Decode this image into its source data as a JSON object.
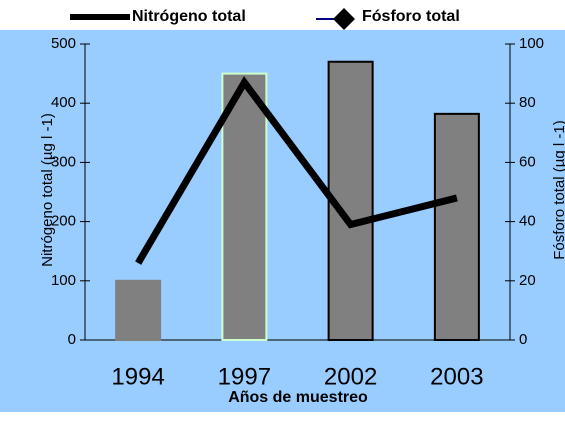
{
  "chart_data": {
    "type": "bar_line",
    "categories": [
      "1994",
      "1997",
      "2002",
      "2003"
    ],
    "series": [
      {
        "name": "Nitrógeno total",
        "type": "bar",
        "color": "#808080",
        "edge_colors": [
          "#808080",
          "#ccffcc",
          "#000000",
          "#000000"
        ],
        "values": [
          100,
          450,
          470,
          382
        ]
      },
      {
        "name": "Fósforo total",
        "type": "line",
        "color": "#000000",
        "axis": "y2",
        "values": [
          26,
          87,
          39,
          48
        ]
      }
    ],
    "xlabel": "Años de muestreo",
    "ylabel": "Nitrógeno total (µg l -1)",
    "y2label": "Fósforo total (µg l -1)",
    "ylim": [
      0,
      500
    ],
    "yticks": [
      0,
      100,
      200,
      300,
      400,
      500
    ],
    "y2lim": [
      0,
      100
    ],
    "y2ticks": [
      0,
      20,
      40,
      60,
      80,
      100
    ],
    "background": "#99ccff"
  }
}
